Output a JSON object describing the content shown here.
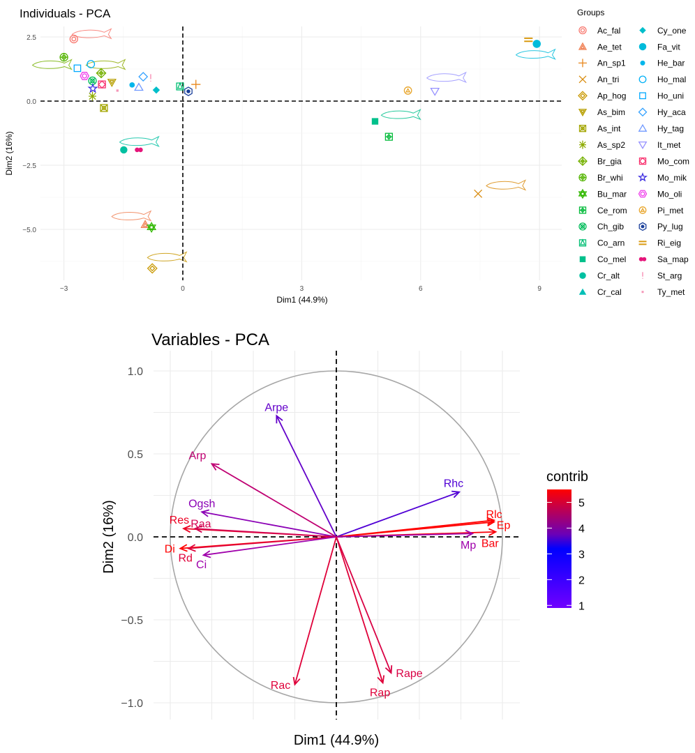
{
  "chart_data": [
    {
      "type": "scatter",
      "title": "Individuals - PCA",
      "xlabel": "Dim1 (44.9%)",
      "ylabel": "Dim2 (16%)",
      "xlim": [
        -3.6,
        9.5
      ],
      "ylim": [
        -7.0,
        2.9
      ],
      "xticks": [
        -3,
        0,
        3,
        6,
        9
      ],
      "xtick_labels": [
        "−3",
        "0",
        "3",
        "6",
        "9"
      ],
      "yticks": [
        2.5,
        0.0,
        -2.5,
        -5.0
      ],
      "ytick_labels": [
        "2.5",
        "0.0",
        "−2.5",
        "−5.0"
      ],
      "grid": true,
      "reference_lines": {
        "x": 0,
        "y": 0,
        "style": "dashed"
      },
      "legend": {
        "title": "Groups",
        "position": "right",
        "columns": 2
      },
      "points": [
        {
          "group": "Ac_fal",
          "x": -2.75,
          "y": 2.42,
          "color": "#F8766D",
          "shape": "circle-double"
        },
        {
          "group": "Ae_tet",
          "x": -0.95,
          "y": -4.81,
          "color": "#F07F52",
          "shape": "triangle-double"
        },
        {
          "group": "An_sp1",
          "x": 0.33,
          "y": 0.65,
          "color": "#E8861A",
          "shape": "plus"
        },
        {
          "group": "An_tri",
          "x": 7.45,
          "y": -3.61,
          "color": "#D98B0D",
          "shape": "cross"
        },
        {
          "group": "Ap_hog",
          "x": -0.77,
          "y": -6.52,
          "color": "#C99800",
          "shape": "diamond-double"
        },
        {
          "group": "As_bim",
          "x": -1.79,
          "y": 0.73,
          "color": "#B79F00",
          "shape": "triangle-down-double"
        },
        {
          "group": "As_int",
          "x": -1.99,
          "y": -0.27,
          "color": "#A3A500",
          "shape": "square-x"
        },
        {
          "group": "As_sp2",
          "x": -2.28,
          "y": 0.19,
          "color": "#8EAB00",
          "shape": "asterisk"
        },
        {
          "group": "Br_gia",
          "x": -2.06,
          "y": 1.09,
          "color": "#74B000",
          "shape": "diamond-plus"
        },
        {
          "group": "Br_whi",
          "x": -3.0,
          "y": 1.71,
          "color": "#53B400",
          "shape": "circle-plus"
        },
        {
          "group": "Bu_mar",
          "x": -0.79,
          "y": -4.92,
          "color": "#31B800",
          "shape": "star-david"
        },
        {
          "group": "Ce_rom",
          "x": 5.2,
          "y": -1.39,
          "color": "#00BA38",
          "shape": "square-plus"
        },
        {
          "group": "Ch_gib",
          "x": -2.28,
          "y": 0.79,
          "color": "#00BC59",
          "shape": "circle-x"
        },
        {
          "group": "Co_arn",
          "x": -0.07,
          "y": 0.57,
          "color": "#00BE73",
          "shape": "square-triangle"
        },
        {
          "group": "Co_mel",
          "x": 4.85,
          "y": -0.79,
          "color": "#00C08B",
          "shape": "square-filled"
        },
        {
          "group": "Cr_alt",
          "x": -1.49,
          "y": -1.9,
          "color": "#00C0A1",
          "shape": "circle-filled"
        },
        {
          "group": "Cr_cal",
          "x": null,
          "y": null,
          "color": "#00BFB6",
          "shape": "triangle-filled"
        },
        {
          "group": "Cy_one",
          "x": -0.67,
          "y": 0.43,
          "color": "#00BECA",
          "shape": "diamond-filled"
        },
        {
          "group": "Fa_vit",
          "x": 8.93,
          "y": 2.23,
          "color": "#00BBDB",
          "shape": "circle-big"
        },
        {
          "group": "He_bar",
          "x": -1.28,
          "y": 0.63,
          "color": "#00B6EB",
          "shape": "circle-small"
        },
        {
          "group": "Ho_mal",
          "x": -2.32,
          "y": 1.44,
          "color": "#00B0F6",
          "shape": "circle-open"
        },
        {
          "group": "Ho_uni",
          "x": -2.66,
          "y": 1.28,
          "color": "#00A9FF",
          "shape": "square-open"
        },
        {
          "group": "Hy_aca",
          "x": -1.0,
          "y": 0.95,
          "color": "#35A2FF",
          "shape": "diamond-open"
        },
        {
          "group": "Hy_tag",
          "x": -1.11,
          "y": 0.54,
          "color": "#7099FF",
          "shape": "triangle-open"
        },
        {
          "group": "It_met",
          "x": 6.36,
          "y": 0.38,
          "color": "#9590FF",
          "shape": "triangle-down-open"
        },
        {
          "group": "Mo_com",
          "x": -2.04,
          "y": 0.65,
          "color": "#F8306D",
          "shape": "square-diamond"
        },
        {
          "group": "Mo_mik",
          "x": -2.27,
          "y": 0.49,
          "color": "#3B2BE0",
          "shape": "star-open"
        },
        {
          "group": "Mo_oli",
          "x": -2.48,
          "y": 0.98,
          "color": "#EE3BEA",
          "shape": "hexagon-circle"
        },
        {
          "group": "Pi_met",
          "x": 5.68,
          "y": 0.41,
          "color": "#E8A52A",
          "shape": "circle-triangle"
        },
        {
          "group": "Py_lug",
          "x": 0.14,
          "y": 0.38,
          "color": "#1A3F9A",
          "shape": "hexagon-dot"
        },
        {
          "group": "Ri_eig",
          "x": 8.72,
          "y": 2.39,
          "color": "#D99A10",
          "shape": "equals"
        },
        {
          "group": "Sa_map",
          "x": -1.11,
          "y": -1.9,
          "color": "#E5157A",
          "shape": "double-dot"
        },
        {
          "group": "St_arg",
          "x": -0.81,
          "y": 0.9,
          "color": "#F67CA8",
          "shape": "exclamation"
        },
        {
          "group": "Ty_met",
          "x": -1.65,
          "y": 0.41,
          "color": "#F597B8",
          "shape": "tiny-square"
        }
      ],
      "fish_outlines": [
        {
          "x": -2.3,
          "y": 2.6,
          "color": "#F8766D"
        },
        {
          "x": -3.3,
          "y": 1.4,
          "color": "#74B000"
        },
        {
          "x": -1.95,
          "y": 1.4,
          "color": "#8EAB00"
        },
        {
          "x": -1.1,
          "y": -1.6,
          "color": "#00C0A1"
        },
        {
          "x": -1.3,
          "y": -4.5,
          "color": "#F07F52"
        },
        {
          "x": -0.4,
          "y": -6.1,
          "color": "#C99800"
        },
        {
          "x": 5.5,
          "y": -0.55,
          "color": "#00C08B"
        },
        {
          "x": 6.65,
          "y": 0.9,
          "color": "#9590FF"
        },
        {
          "x": 8.9,
          "y": 1.8,
          "color": "#00BBDB"
        },
        {
          "x": 8.15,
          "y": -3.3,
          "color": "#D98B0D"
        }
      ]
    },
    {
      "type": "scatter",
      "subtype": "correlation-circle",
      "title": "Variables - PCA",
      "xlabel": "Dim1 (44.9%)",
      "ylabel": "Dim2 (16%)",
      "xlim": [
        -1.1,
        1.1
      ],
      "ylim": [
        -1.1,
        1.1
      ],
      "yticks": [
        1.0,
        0.5,
        0.0,
        -0.5,
        -1.0
      ],
      "ytick_labels": [
        "1.0",
        "0.5",
        "0.0",
        "−0.5",
        "−1.0"
      ],
      "xgrid": [
        -1.0,
        -0.75,
        -0.5,
        -0.25,
        0,
        0.25,
        0.5,
        0.75,
        1.0
      ],
      "grid": true,
      "unit_circle": true,
      "reference_lines": {
        "x": 0,
        "y": 0,
        "style": "dashed"
      },
      "color_scale": {
        "title": "contrib",
        "ticks": [
          1,
          2,
          3,
          4,
          5
        ],
        "range": [
          0.9,
          5.5
        ],
        "midpoint": 3.2,
        "low": "#7000FF",
        "mid": "#0000FF",
        "high": "#FF0000",
        "position": "right"
      },
      "variables": [
        {
          "name": "Arpe",
          "x": -0.36,
          "y": 0.73,
          "contrib": 3.7,
          "label_dx": 0,
          "label_dy": -1
        },
        {
          "name": "Arp",
          "x": -0.75,
          "y": 0.44,
          "contrib": 4.5,
          "label_dx": -1,
          "label_dy": -1
        },
        {
          "name": "Ogsh",
          "x": -0.81,
          "y": 0.15,
          "contrib": 3.9,
          "label_dx": 0,
          "label_dy": -1
        },
        {
          "name": "Res",
          "x": -0.92,
          "y": 0.05,
          "contrib": 5.2,
          "label_dx": -0.3,
          "label_dy": -1
        },
        {
          "name": "Raa",
          "x": -0.85,
          "y": 0.05,
          "contrib": 4.8,
          "label_dx": 0.4,
          "label_dy": -0.6
        },
        {
          "name": "Di",
          "x": -0.94,
          "y": -0.07,
          "contrib": 5.5,
          "label_dx": -1,
          "label_dy": 0
        },
        {
          "name": "Rd",
          "x": -0.89,
          "y": -0.07,
          "contrib": 5.0,
          "label_dx": -0.3,
          "label_dy": 1
        },
        {
          "name": "Ci",
          "x": -0.8,
          "y": -0.11,
          "contrib": 4.0,
          "label_dx": -0.2,
          "label_dy": 1
        },
        {
          "name": "Rhc",
          "x": 0.74,
          "y": 0.27,
          "contrib": 3.6,
          "label_dx": -0.4,
          "label_dy": -1
        },
        {
          "name": "Rlc",
          "x": 0.95,
          "y": 0.1,
          "contrib": 5.5,
          "label_dx": 0,
          "label_dy": -0.7
        },
        {
          "name": "Ep",
          "x": 0.95,
          "y": 0.09,
          "contrib": 5.5,
          "label_dx": 0.9,
          "label_dy": 0.3
        },
        {
          "name": "Bar",
          "x": 0.96,
          "y": 0.03,
          "contrib": 5.4,
          "label_dx": -0.4,
          "label_dy": 1.2
        },
        {
          "name": "Mp",
          "x": 0.82,
          "y": 0.02,
          "contrib": 4.0,
          "label_dx": -0.4,
          "label_dy": 1.2
        },
        {
          "name": "Rac",
          "x": -0.25,
          "y": -0.89,
          "contrib": 5.0,
          "label_dx": -1,
          "label_dy": 0
        },
        {
          "name": "Rap",
          "x": 0.28,
          "y": -0.88,
          "contrib": 5.0,
          "label_dx": -0.2,
          "label_dy": 1
        },
        {
          "name": "Rape",
          "x": 0.33,
          "y": -0.82,
          "contrib": 4.9,
          "label_dx": 1,
          "label_dy": 0
        }
      ]
    }
  ]
}
